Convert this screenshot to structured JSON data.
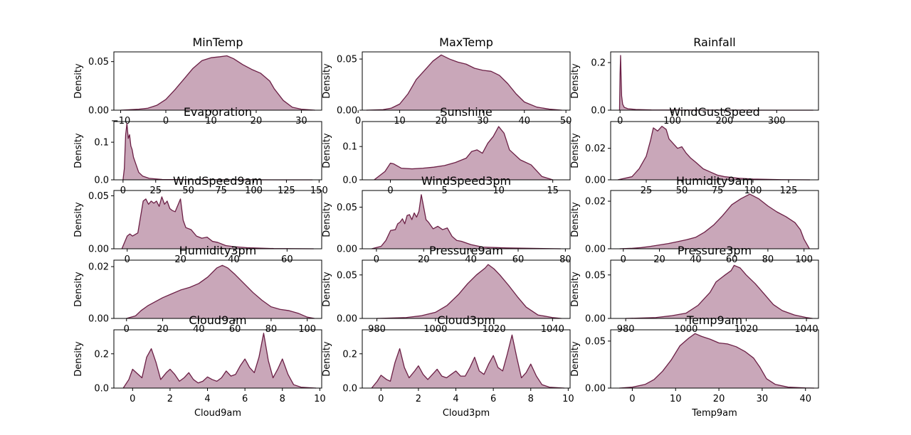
{
  "density_label": "Density",
  "style": {
    "line_color": "#6b1f45",
    "fill_color": "#c9a7b9"
  },
  "chart_data": [
    {
      "type": "area",
      "title": "MinTemp",
      "xlabel": "",
      "ylabel": "Density",
      "xlim": [
        -11.5,
        34.5
      ],
      "ylim": [
        0,
        0.06
      ],
      "xticks": [
        -10,
        0,
        10,
        20,
        30
      ],
      "xtick_labels": [
        "−10",
        "0",
        "10",
        "20",
        "30"
      ],
      "yticks": [
        0,
        0.05
      ],
      "ytick_labels": [
        "0.00",
        "0.05"
      ],
      "x": [
        -10,
        -6,
        -4,
        -2,
        0,
        2,
        4,
        6,
        8,
        10,
        12,
        13.5,
        15,
        17,
        19,
        21,
        23,
        24,
        26,
        28,
        30,
        33
      ],
      "y": [
        0.0,
        0.001,
        0.002,
        0.005,
        0.011,
        0.021,
        0.032,
        0.043,
        0.051,
        0.054,
        0.055,
        0.056,
        0.053,
        0.047,
        0.042,
        0.038,
        0.03,
        0.022,
        0.01,
        0.003,
        0.001,
        0.0
      ]
    },
    {
      "type": "area",
      "title": "MaxTemp",
      "xlabel": "",
      "ylabel": "Density",
      "xlim": [
        1,
        51
      ],
      "ylim": [
        0,
        0.057
      ],
      "xticks": [
        0,
        10,
        20,
        30,
        40,
        50
      ],
      "xtick_labels": [
        "0",
        "10",
        "20",
        "30",
        "40",
        "50"
      ],
      "yticks": [
        0,
        0.05
      ],
      "ytick_labels": [
        "0.00",
        "0.05"
      ],
      "x": [
        2,
        6,
        8,
        10,
        12,
        14,
        16,
        18,
        20,
        22,
        24,
        26,
        28,
        30,
        32,
        34,
        36,
        38,
        40,
        43,
        46,
        49
      ],
      "y": [
        0.0,
        0.0005,
        0.002,
        0.006,
        0.016,
        0.03,
        0.039,
        0.048,
        0.054,
        0.05,
        0.047,
        0.045,
        0.041,
        0.039,
        0.038,
        0.034,
        0.026,
        0.016,
        0.008,
        0.003,
        0.001,
        0.0
      ]
    },
    {
      "type": "area",
      "title": "Rainfall",
      "xlabel": "",
      "ylabel": "Density",
      "xlim": [
        -18,
        380
      ],
      "ylim": [
        0,
        0.245
      ],
      "xticks": [
        0,
        100,
        200,
        300
      ],
      "xtick_labels": [
        "0",
        "100",
        "200",
        "300"
      ],
      "yticks": [
        0,
        0.2
      ],
      "ytick_labels": [
        "0.0",
        "0.2"
      ],
      "x": [
        -1,
        0,
        1,
        2,
        3,
        5,
        8,
        15,
        30,
        60,
        100,
        200,
        300,
        370
      ],
      "y": [
        0.0,
        0.15,
        0.23,
        0.14,
        0.06,
        0.025,
        0.012,
        0.006,
        0.003,
        0.001,
        0.0005,
        0.0002,
        0.0001,
        0.0
      ]
    },
    {
      "type": "area",
      "title": "Evaporation",
      "xlabel": "",
      "ylabel": "Density",
      "xlim": [
        -7,
        152
      ],
      "ylim": [
        0,
        0.155
      ],
      "xticks": [
        0,
        25,
        50,
        75,
        100,
        125,
        150
      ],
      "xtick_labels": [
        "0",
        "25",
        "50",
        "75",
        "100",
        "125",
        "150"
      ],
      "yticks": [
        0,
        0.1
      ],
      "ytick_labels": [
        "0.0",
        "0.1"
      ],
      "x": [
        0,
        1,
        2,
        3,
        4,
        5,
        6,
        7,
        8,
        10,
        12,
        15,
        20,
        30,
        50,
        100,
        145
      ],
      "y": [
        0.0,
        0.03,
        0.12,
        0.15,
        0.11,
        0.12,
        0.09,
        0.08,
        0.06,
        0.04,
        0.02,
        0.01,
        0.004,
        0.001,
        0.0003,
        0.0001,
        0.0
      ]
    },
    {
      "type": "area",
      "title": "Sunshine",
      "xlabel": "",
      "ylabel": "Density",
      "xlim": [
        -2.6,
        16.6
      ],
      "ylim": [
        0,
        0.175
      ],
      "xticks": [
        0,
        5,
        10,
        15
      ],
      "xtick_labels": [
        "0",
        "5",
        "10",
        "15"
      ],
      "yticks": [
        0,
        0.1
      ],
      "ytick_labels": [
        "0.0",
        "0.1"
      ],
      "x": [
        -1.5,
        -0.5,
        0,
        0.3,
        1,
        2,
        3,
        4,
        5,
        6,
        7,
        7.5,
        8,
        8.5,
        9,
        9.5,
        10,
        10.5,
        11,
        12,
        13,
        14,
        15
      ],
      "y": [
        0.0,
        0.025,
        0.05,
        0.048,
        0.035,
        0.033,
        0.035,
        0.038,
        0.043,
        0.052,
        0.065,
        0.085,
        0.09,
        0.08,
        0.11,
        0.13,
        0.16,
        0.14,
        0.09,
        0.06,
        0.045,
        0.01,
        0.0
      ]
    },
    {
      "type": "area",
      "title": "WindGustSpeed",
      "xlabel": "",
      "ylabel": "Density",
      "xlim": [
        0,
        146
      ],
      "ylim": [
        0,
        0.037
      ],
      "xticks": [
        25,
        50,
        75,
        100,
        125
      ],
      "xtick_labels": [
        "25",
        "50",
        "75",
        "100",
        "125"
      ],
      "yticks": [
        0,
        0.02
      ],
      "ytick_labels": [
        "0.00",
        "0.02"
      ],
      "x": [
        5,
        15,
        20,
        25,
        28,
        30,
        33,
        36,
        39,
        41,
        44,
        47,
        50,
        53,
        56,
        60,
        65,
        70,
        75,
        80,
        90,
        100,
        120,
        140
      ],
      "y": [
        0.0,
        0.002,
        0.007,
        0.015,
        0.025,
        0.033,
        0.031,
        0.034,
        0.032,
        0.026,
        0.023,
        0.02,
        0.021,
        0.017,
        0.014,
        0.011,
        0.007,
        0.005,
        0.003,
        0.002,
        0.001,
        0.0005,
        0.0001,
        0.0
      ]
    },
    {
      "type": "area",
      "title": "WindSpeed9am",
      "xlabel": "",
      "ylabel": "Density",
      "xlim": [
        -5,
        73
      ],
      "ylim": [
        0,
        0.055
      ],
      "xticks": [
        0,
        20,
        40,
        60
      ],
      "xtick_labels": [
        "0",
        "20",
        "40",
        "60"
      ],
      "yticks": [
        0,
        0.05
      ],
      "ytick_labels": [
        "0.00",
        "0.05"
      ],
      "x": [
        -2,
        0,
        1,
        2,
        4,
        6,
        7,
        8,
        9,
        10,
        11,
        12,
        13,
        14,
        15,
        16,
        17,
        18,
        19,
        20,
        21,
        22,
        24,
        26,
        28,
        30,
        32,
        34,
        37,
        40,
        45,
        55,
        70
      ],
      "y": [
        0.0,
        0.012,
        0.014,
        0.012,
        0.015,
        0.045,
        0.047,
        0.042,
        0.045,
        0.043,
        0.045,
        0.04,
        0.049,
        0.042,
        0.045,
        0.038,
        0.036,
        0.035,
        0.041,
        0.047,
        0.027,
        0.02,
        0.018,
        0.012,
        0.01,
        0.011,
        0.007,
        0.006,
        0.003,
        0.002,
        0.001,
        0.0002,
        0.0
      ]
    },
    {
      "type": "area",
      "title": "WindSpeed3pm",
      "xlabel": "",
      "ylabel": "Density",
      "xlim": [
        -6,
        82
      ],
      "ylim": [
        0,
        0.07
      ],
      "xticks": [
        0,
        20,
        40,
        60,
        80
      ],
      "xtick_labels": [
        "0",
        "20",
        "40",
        "60",
        "80"
      ],
      "yticks": [
        0,
        0.05
      ],
      "ytick_labels": [
        "0.00",
        "0.05"
      ],
      "x": [
        -2,
        2,
        4,
        6,
        8,
        9,
        10,
        11,
        12,
        13,
        14,
        15,
        16,
        17,
        18,
        19,
        20,
        21,
        22,
        23,
        24,
        26,
        28,
        30,
        32,
        34,
        36,
        40,
        45,
        55,
        78
      ],
      "y": [
        0.0,
        0.003,
        0.01,
        0.022,
        0.023,
        0.03,
        0.032,
        0.036,
        0.03,
        0.04,
        0.041,
        0.035,
        0.043,
        0.038,
        0.045,
        0.065,
        0.05,
        0.035,
        0.032,
        0.028,
        0.024,
        0.027,
        0.023,
        0.025,
        0.015,
        0.01,
        0.009,
        0.005,
        0.002,
        0.001,
        0.0
      ]
    },
    {
      "type": "area",
      "title": "Humidity9am",
      "xlabel": "",
      "ylabel": "Density",
      "xlim": [
        -7,
        108
      ],
      "ylim": [
        0,
        0.0245
      ],
      "xticks": [
        0,
        20,
        40,
        60,
        80,
        100
      ],
      "xtick_labels": [
        "0",
        "20",
        "40",
        "60",
        "80",
        "100"
      ],
      "yticks": [
        0,
        0.02
      ],
      "ytick_labels": [
        "0.00",
        "0.02"
      ],
      "x": [
        -2,
        5,
        10,
        15,
        20,
        25,
        30,
        35,
        40,
        45,
        50,
        55,
        60,
        65,
        70,
        75,
        80,
        85,
        90,
        95,
        98,
        100,
        103
      ],
      "y": [
        0.0,
        0.0002,
        0.0005,
        0.001,
        0.0016,
        0.0022,
        0.003,
        0.0038,
        0.0048,
        0.007,
        0.01,
        0.014,
        0.0185,
        0.021,
        0.023,
        0.021,
        0.018,
        0.0155,
        0.0135,
        0.011,
        0.008,
        0.004,
        0.0
      ]
    },
    {
      "type": "area",
      "title": "Humidity3pm",
      "xlabel": "",
      "ylabel": "Density",
      "xlim": [
        -7,
        108
      ],
      "ylim": [
        0,
        0.0225
      ],
      "xticks": [
        0,
        20,
        40,
        60,
        80,
        100
      ],
      "xtick_labels": [
        "0",
        "20",
        "40",
        "60",
        "80",
        "100"
      ],
      "yticks": [
        0,
        0.02
      ],
      "ytick_labels": [
        "0.00",
        "0.02"
      ],
      "x": [
        0,
        5,
        8,
        12,
        16,
        20,
        25,
        30,
        35,
        40,
        45,
        50,
        53,
        56,
        60,
        65,
        70,
        75,
        80,
        85,
        90,
        95,
        100,
        104
      ],
      "y": [
        0.0,
        0.001,
        0.003,
        0.005,
        0.0065,
        0.008,
        0.0095,
        0.011,
        0.012,
        0.0135,
        0.016,
        0.0195,
        0.0205,
        0.0195,
        0.017,
        0.0135,
        0.01,
        0.007,
        0.0045,
        0.0035,
        0.003,
        0.002,
        0.0005,
        0.0
      ]
    },
    {
      "type": "area",
      "title": "Pressure9am",
      "xlabel": "",
      "ylabel": "Density",
      "xlim": [
        975,
        1046
      ],
      "ylim": [
        0,
        0.067
      ],
      "xticks": [
        980,
        1000,
        1020,
        1040
      ],
      "xtick_labels": [
        "980",
        "1000",
        "1020",
        "1040"
      ],
      "yticks": [
        0,
        0.05
      ],
      "ytick_labels": [
        "0.00",
        "0.05"
      ],
      "x": [
        980,
        990,
        995,
        1000,
        1004,
        1008,
        1011,
        1014,
        1017,
        1018,
        1020,
        1022,
        1025,
        1028,
        1031,
        1035,
        1040,
        1043
      ],
      "y": [
        0.0,
        0.001,
        0.003,
        0.007,
        0.015,
        0.028,
        0.04,
        0.05,
        0.058,
        0.062,
        0.057,
        0.05,
        0.038,
        0.025,
        0.013,
        0.004,
        0.001,
        0.0
      ]
    },
    {
      "type": "area",
      "title": "Pressure3pm",
      "xlabel": "",
      "ylabel": "Density",
      "xlim": [
        975,
        1044
      ],
      "ylim": [
        0,
        0.067
      ],
      "xticks": [
        980,
        1000,
        1020,
        1040
      ],
      "xtick_labels": [
        "980",
        "1000",
        "1020",
        "1040"
      ],
      "yticks": [
        0,
        0.05
      ],
      "ytick_labels": [
        "0.00",
        "0.05"
      ],
      "x": [
        980,
        990,
        995,
        1000,
        1004,
        1008,
        1010,
        1013,
        1015,
        1016,
        1018,
        1020,
        1023,
        1026,
        1029,
        1032,
        1036,
        1040,
        1042
      ],
      "y": [
        0.0,
        0.001,
        0.003,
        0.006,
        0.015,
        0.03,
        0.042,
        0.05,
        0.055,
        0.061,
        0.058,
        0.05,
        0.04,
        0.028,
        0.016,
        0.009,
        0.004,
        0.001,
        0.0
      ]
    },
    {
      "type": "area",
      "title": "Cloud9am",
      "xlabel": "Cloud9am",
      "ylabel": "Density",
      "xlim": [
        -1,
        10.1
      ],
      "ylim": [
        0,
        0.34
      ],
      "xticks": [
        0,
        2,
        4,
        6,
        8,
        10
      ],
      "xtick_labels": [
        "0",
        "2",
        "4",
        "6",
        "8",
        "10"
      ],
      "yticks": [
        0,
        0.2
      ],
      "ytick_labels": [
        "0.0",
        "0.2"
      ],
      "x": [
        -0.5,
        -0.2,
        0,
        0.3,
        0.5,
        0.75,
        1,
        1.25,
        1.5,
        1.8,
        2,
        2.25,
        2.5,
        2.75,
        3,
        3.25,
        3.5,
        3.75,
        4,
        4.25,
        4.5,
        4.75,
        5,
        5.25,
        5.5,
        5.75,
        6,
        6.25,
        6.5,
        6.75,
        7,
        7.25,
        7.5,
        7.75,
        8,
        8.3,
        8.6,
        9,
        9.8
      ],
      "y": [
        0.0,
        0.05,
        0.11,
        0.08,
        0.06,
        0.18,
        0.23,
        0.15,
        0.05,
        0.09,
        0.11,
        0.08,
        0.04,
        0.06,
        0.09,
        0.05,
        0.03,
        0.04,
        0.065,
        0.05,
        0.04,
        0.06,
        0.1,
        0.07,
        0.08,
        0.13,
        0.17,
        0.12,
        0.09,
        0.18,
        0.32,
        0.16,
        0.06,
        0.11,
        0.17,
        0.08,
        0.02,
        0.005,
        0.0
      ]
    },
    {
      "type": "area",
      "title": "Cloud3pm",
      "xlabel": "Cloud3pm",
      "ylabel": "Density",
      "xlim": [
        -1,
        10.1
      ],
      "ylim": [
        0,
        0.34
      ],
      "xticks": [
        0,
        2,
        4,
        6,
        8,
        10
      ],
      "xtick_labels": [
        "0",
        "2",
        "4",
        "6",
        "8",
        "10"
      ],
      "yticks": [
        0,
        0.2
      ],
      "ytick_labels": [
        "0.0",
        "0.2"
      ],
      "x": [
        -0.5,
        -0.2,
        0,
        0.3,
        0.5,
        0.75,
        1,
        1.25,
        1.5,
        1.8,
        2,
        2.25,
        2.5,
        2.75,
        3,
        3.25,
        3.5,
        3.75,
        4,
        4.25,
        4.5,
        4.75,
        5,
        5.25,
        5.5,
        5.75,
        6,
        6.25,
        6.5,
        6.75,
        7,
        7.25,
        7.5,
        7.75,
        8,
        8.3,
        8.6,
        9,
        9.8
      ],
      "y": [
        0.0,
        0.04,
        0.075,
        0.05,
        0.04,
        0.15,
        0.23,
        0.12,
        0.06,
        0.1,
        0.13,
        0.08,
        0.05,
        0.08,
        0.11,
        0.07,
        0.06,
        0.08,
        0.1,
        0.07,
        0.07,
        0.12,
        0.18,
        0.1,
        0.08,
        0.14,
        0.19,
        0.12,
        0.1,
        0.2,
        0.31,
        0.18,
        0.06,
        0.09,
        0.14,
        0.07,
        0.02,
        0.005,
        0.0
      ]
    },
    {
      "type": "area",
      "title": "Temp9am",
      "xlabel": "Temp9am",
      "ylabel": "Density",
      "xlim": [
        -5,
        43
      ],
      "ylim": [
        0,
        0.062
      ],
      "xticks": [
        0,
        10,
        20,
        30,
        40
      ],
      "xtick_labels": [
        "0",
        "10",
        "20",
        "30",
        "40"
      ],
      "yticks": [
        0,
        0.05
      ],
      "ytick_labels": [
        "0.00",
        "0.05"
      ],
      "x": [
        -3,
        0,
        3,
        5,
        7,
        9,
        11,
        13,
        14.5,
        16,
        18,
        20,
        22,
        24,
        26,
        28,
        29.5,
        31,
        33,
        36,
        40,
        42
      ],
      "y": [
        0.0,
        0.001,
        0.004,
        0.009,
        0.018,
        0.03,
        0.045,
        0.053,
        0.058,
        0.055,
        0.052,
        0.048,
        0.047,
        0.044,
        0.039,
        0.032,
        0.022,
        0.01,
        0.004,
        0.001,
        0.0002,
        0.0
      ]
    }
  ]
}
